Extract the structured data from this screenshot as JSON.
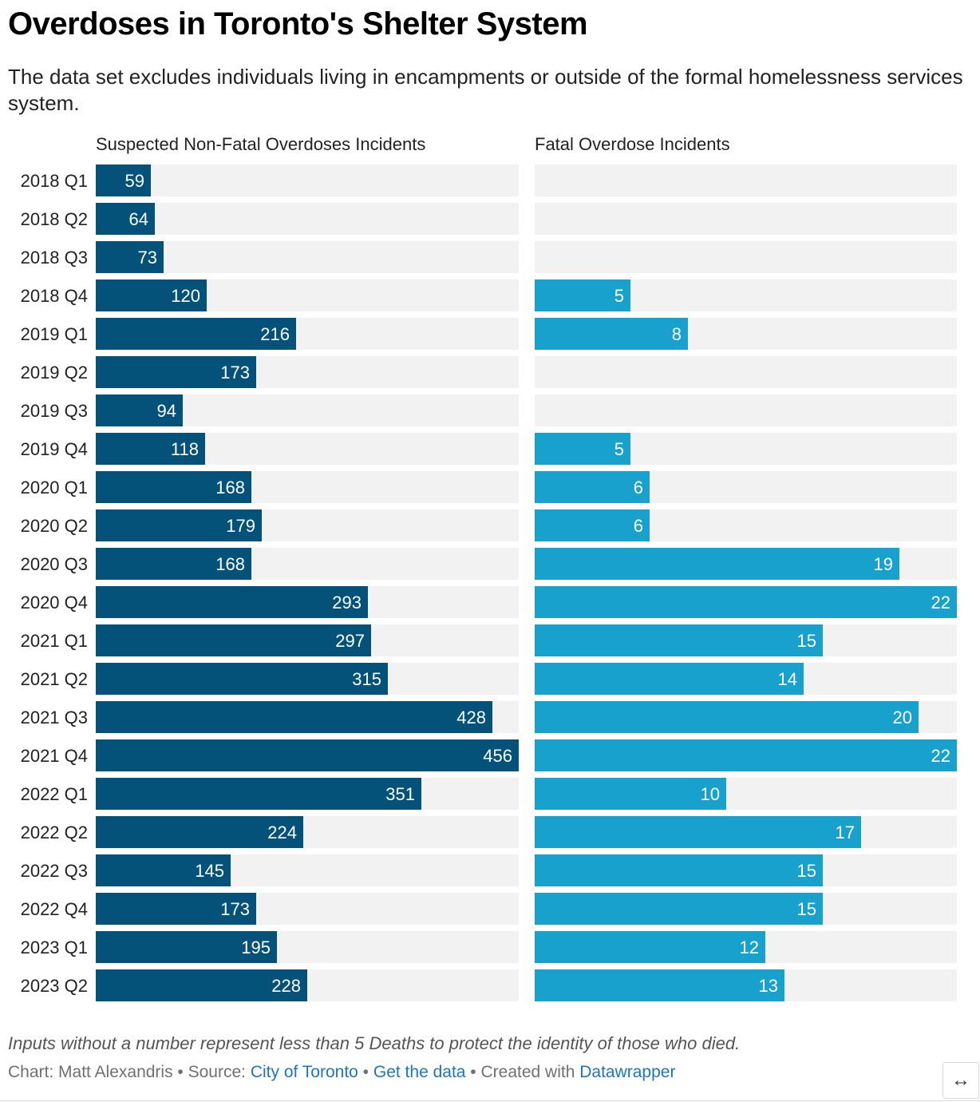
{
  "title": "Overdoses in Toronto's Shelter System",
  "subtitle": "The data set excludes individuals living in encampments or outside of the formal homelessness services system.",
  "footnote": "Inputs without a number represent less than 5 Deaths to protect the identity of those who died.",
  "credits": {
    "prefix": "Chart: Matt Alexandris • Source: ",
    "source_link": "City of Toronto",
    "sep1": " • ",
    "data_link": "Get the data",
    "sep2": " • Created with ",
    "tool_link": "Datawrapper"
  },
  "expand_icon": "↔",
  "colors": {
    "non_fatal": "#04517a",
    "fatal": "#18a1cd",
    "track": "#f2f2f2"
  },
  "chart_data": {
    "type": "bar",
    "orientation": "horizontal",
    "categories": [
      "2018 Q1",
      "2018 Q2",
      "2018 Q3",
      "2018 Q4",
      "2019 Q1",
      "2019 Q2",
      "2019 Q3",
      "2019 Q4",
      "2020 Q1",
      "2020 Q2",
      "2020 Q3",
      "2020 Q4",
      "2021 Q1",
      "2021 Q2",
      "2021 Q3",
      "2021 Q4",
      "2022 Q1",
      "2022 Q2",
      "2022 Q3",
      "2022 Q4",
      "2023 Q1",
      "2023 Q2"
    ],
    "series": [
      {
        "name": "Suspected Non-Fatal Overdoses Incidents",
        "values": [
          59,
          64,
          73,
          120,
          216,
          173,
          94,
          118,
          168,
          179,
          168,
          293,
          297,
          315,
          428,
          456,
          351,
          224,
          145,
          173,
          195,
          228
        ],
        "xlim": [
          0,
          456
        ]
      },
      {
        "name": "Fatal Overdose Incidents",
        "values": [
          null,
          null,
          null,
          5,
          8,
          null,
          null,
          5,
          6,
          6,
          19,
          22,
          15,
          14,
          20,
          22,
          10,
          17,
          15,
          15,
          12,
          13
        ],
        "xlim": [
          0,
          22
        ]
      }
    ]
  }
}
